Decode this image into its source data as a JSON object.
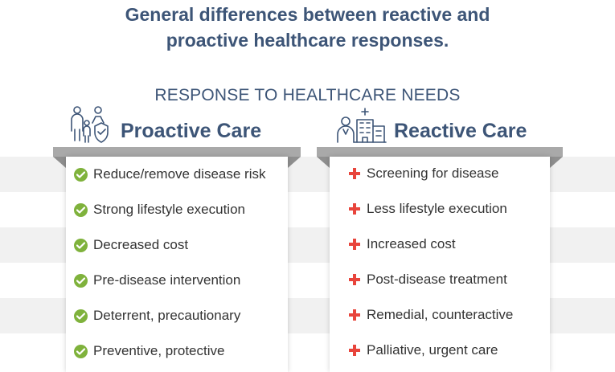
{
  "header": {
    "title_line1": "General differences between reactive and",
    "title_line2": "proactive healthcare responses.",
    "subtitle": "RESPONSE TO HEALTHCARE NEEDS"
  },
  "columns": {
    "proactive": {
      "title": "Proactive Care",
      "icon": "family-shield-icon",
      "bullet": "check-icon",
      "items": [
        "Reduce/remove disease risk",
        "Strong lifestyle execution",
        "Decreased cost",
        "Pre-disease intervention",
        "Deterrent, precautionary",
        "Preventive, protective"
      ]
    },
    "reactive": {
      "title": "Reactive Care",
      "icon": "doctor-hospital-icon",
      "bullet": "plus-icon",
      "items": [
        "Screening for disease",
        "Less lifestyle execution",
        "Increased cost",
        "Post-disease treatment",
        "Remedial, counteractive",
        "Palliative, urgent care"
      ]
    }
  },
  "colors": {
    "heading": "#3d5577",
    "check": "#7fb23c",
    "plus": "#e8453c",
    "shelf": "#a9a9a9",
    "stripe": "#f1f1f1"
  }
}
